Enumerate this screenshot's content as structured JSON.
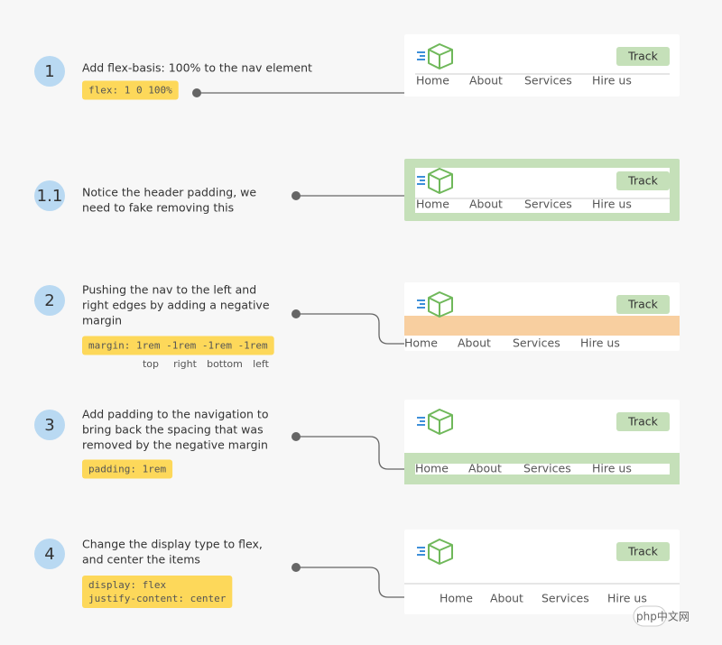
{
  "steps": [
    {
      "number": "1",
      "description": [
        "Add flex-basis: 100% to the nav element"
      ],
      "code": [
        "flex: 1 0 100%"
      ]
    },
    {
      "number": "1.1",
      "description": [
        "Notice the header padding, we",
        "need to fake removing this"
      ],
      "code": []
    },
    {
      "number": "2",
      "description": [
        "Pushing the nav to the left and",
        "right edges by adding a negative",
        "margin"
      ],
      "code": [
        "margin: 1rem -1rem -1rem -1rem"
      ]
    },
    {
      "number": "3",
      "description": [
        "Add padding to the navigation to",
        "bring back the spacing that was",
        "removed by the negative margin"
      ],
      "code": [
        "padding: 1rem"
      ]
    },
    {
      "number": "4",
      "description": [
        "Change the display type to flex,",
        "and center the items"
      ],
      "code": [
        "display: flex",
        "justify-content: center"
      ]
    }
  ],
  "margin_labels": [
    "top",
    "right",
    "bottom",
    "left"
  ],
  "mockups": [
    {
      "button": "Track",
      "nav": [
        "Home",
        "About",
        "Services",
        "Hire us"
      ]
    },
    {
      "button": "Track",
      "nav": [
        "Home",
        "About",
        "Services",
        "Hire us"
      ]
    },
    {
      "button": "Track",
      "nav": [
        "Home",
        "About",
        "Services",
        "Hire us"
      ]
    },
    {
      "button": "Track",
      "nav": [
        "Home",
        "About",
        "Services",
        "Hire us"
      ]
    },
    {
      "button": "Track",
      "nav": [
        "Home",
        "About",
        "Services",
        "Hire us"
      ]
    }
  ],
  "watermark": "php中文网"
}
